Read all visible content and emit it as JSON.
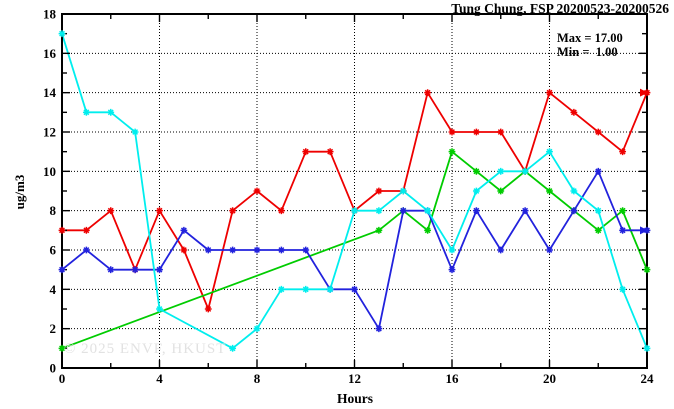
{
  "title": "Tung Chung, FSP 20200523-20200526",
  "stats": {
    "max_label": "Max = 17.00",
    "min_label": "Min =  1.00"
  },
  "watermark": "© 2025 ENVF, HKUST",
  "axes": {
    "xlabel": "Hours",
    "ylabel": "ug/m3"
  },
  "chart_data": {
    "type": "line",
    "title": "Tung Chung, FSP 20200523-20200526",
    "xlabel": "Hours",
    "ylabel": "ug/m3",
    "xlim": [
      0,
      24
    ],
    "ylim": [
      0,
      18
    ],
    "x_major_ticks": [
      0,
      4,
      8,
      12,
      16,
      20,
      24
    ],
    "x_minor_step": 2,
    "y_major_ticks": [
      0,
      2,
      4,
      6,
      8,
      10,
      12,
      14,
      16,
      18
    ],
    "y_minor_step": 1,
    "grid": "dotted black gridlines at x multiples of 4 and y multiples of 2",
    "legend_position": "none",
    "stats": {
      "max": 17.0,
      "min": 1.0
    },
    "x": [
      0,
      1,
      2,
      3,
      4,
      5,
      6,
      7,
      8,
      9,
      10,
      11,
      12,
      13,
      14,
      15,
      16,
      17,
      18,
      19,
      20,
      21,
      22,
      23,
      24
    ],
    "series": [
      {
        "name": "series-red",
        "color": "#ee0000",
        "end_arrow": true,
        "values": [
          7,
          7,
          8,
          5,
          8,
          6,
          3,
          8,
          9,
          8,
          11,
          11,
          8,
          9,
          9,
          14,
          12,
          12,
          12,
          10,
          14,
          13,
          12,
          11,
          14
        ]
      },
      {
        "name": "series-green",
        "color": "#00cc00",
        "end_arrow": false,
        "values": [
          1,
          null,
          null,
          null,
          null,
          null,
          null,
          null,
          null,
          null,
          null,
          null,
          null,
          7,
          8,
          7,
          11,
          10,
          9,
          10,
          9,
          8,
          7,
          8,
          5
        ]
      },
      {
        "name": "series-blue",
        "color": "#2222dd",
        "end_arrow": true,
        "values": [
          5,
          6,
          5,
          5,
          5,
          7,
          6,
          6,
          6,
          6,
          6,
          4,
          4,
          2,
          8,
          8,
          5,
          8,
          6,
          8,
          6,
          8,
          10,
          7,
          7
        ]
      },
      {
        "name": "series-cyan",
        "color": "#00eeee",
        "end_arrow": false,
        "values": [
          17,
          13,
          13,
          12,
          3,
          null,
          null,
          1,
          2,
          4,
          4,
          4,
          8,
          8,
          9,
          8,
          6,
          9,
          10,
          10,
          11,
          9,
          8,
          4,
          1
        ]
      }
    ]
  }
}
